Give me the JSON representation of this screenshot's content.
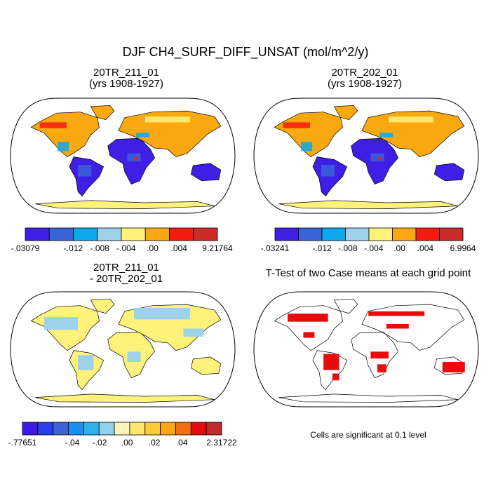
{
  "figure": {
    "title": "DJF CH4_SURF_DIFF_UNSAT (mol/m^2/y)",
    "significance_note": "Cells are significant at 0.1 level"
  },
  "chart_data": [
    {
      "type": "heatmap",
      "panel": "top-left",
      "title": "20TR_211_01",
      "subtitle": "(yrs 1908-1927)",
      "colorbar": {
        "colors": [
          "#3f1fe6",
          "#3b63d8",
          "#0da7ec",
          "#9dd2ea",
          "#fff27a",
          "#f9a810",
          "#f51b10",
          "#cd2a2c"
        ],
        "tick_labels": [
          "-.03079",
          "-.012",
          "-.008",
          "-.004",
          ".00",
          ".004",
          "9.21764"
        ]
      }
    },
    {
      "type": "heatmap",
      "panel": "top-right",
      "title": "20TR_202_01",
      "subtitle": "(yrs 1908-1927)",
      "colorbar": {
        "colors": [
          "#3f1fe6",
          "#3b63d8",
          "#0da7ec",
          "#9dd2ea",
          "#fff27a",
          "#f9a810",
          "#f51b10",
          "#cd2a2c"
        ],
        "tick_labels": [
          "-.03241",
          "-.012",
          "-.008",
          "-.004",
          ".00",
          ".004",
          "6.9964"
        ]
      }
    },
    {
      "type": "heatmap",
      "panel": "bottom-left",
      "title": "20TR_211_01",
      "subtitle": "- 20TR_202_01",
      "colorbar": {
        "colors": [
          "#3a1ce6",
          "#2a3df0",
          "#3c64d8",
          "#1a8ff0",
          "#2fb1ee",
          "#8ed0ee",
          "#fff4b8",
          "#fee66f",
          "#fbcc35",
          "#f9a710",
          "#f56d0c",
          "#e80b0b",
          "#c42a2a"
        ],
        "tick_labels": [
          "-.77651",
          "-.04",
          "-.02",
          ".00",
          ".02",
          ".04",
          "2.31722"
        ]
      }
    },
    {
      "type": "heatmap",
      "panel": "bottom-right",
      "title": "T-Test of two Case means at each grid point",
      "legend_text": "Cells are significant at 0.1 level"
    }
  ]
}
